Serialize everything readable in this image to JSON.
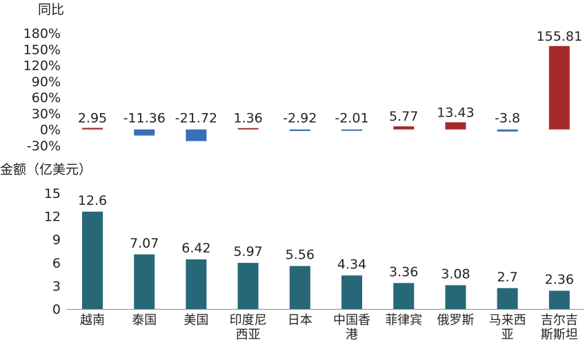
{
  "chart_data": [
    {
      "type": "bar",
      "title": "同比",
      "categories": [
        "越南",
        "泰国",
        "美国",
        "印度尼西亚",
        "日本",
        "中国香港",
        "菲律宾",
        "俄罗斯",
        "马来西亚",
        "吉尔吉斯斯坦"
      ],
      "values": [
        2.95,
        -11.36,
        -21.72,
        1.36,
        -2.92,
        -2.01,
        5.77,
        13.43,
        -3.8,
        155.81
      ],
      "value_labels": [
        "2.95",
        "-11.36",
        "-21.72",
        "1.36",
        "-2.92",
        "-2.01",
        "5.77",
        "13.43",
        "-3.8",
        "155.81"
      ],
      "y_ticks": [
        "-30%",
        "0%",
        "30%",
        "60%",
        "90%",
        "120%",
        "150%",
        "180%"
      ],
      "ylim": [
        -30,
        180
      ],
      "colors": {
        "positive": "#A52A2A",
        "negative": "#3A6EB5"
      },
      "grid": false
    },
    {
      "type": "bar",
      "title": "金额（亿美元）",
      "categories": [
        "越南",
        "泰国",
        "美国",
        "印度尼西亚",
        "日本",
        "中国香港",
        "菲律宾",
        "俄罗斯",
        "马来西亚",
        "吉尔吉斯斯坦"
      ],
      "category_lines": [
        [
          "越南"
        ],
        [
          "泰国"
        ],
        [
          "美国"
        ],
        [
          "印度尼",
          "西亚"
        ],
        [
          "日本"
        ],
        [
          "中国香",
          "港"
        ],
        [
          "菲律宾"
        ],
        [
          "俄罗斯"
        ],
        [
          "马来西",
          "亚"
        ],
        [
          "吉尔吉",
          "斯斯坦"
        ]
      ],
      "values": [
        12.6,
        7.07,
        6.42,
        5.97,
        5.56,
        4.34,
        3.36,
        3.08,
        2.7,
        2.36
      ],
      "value_labels": [
        "12.6",
        "7.07",
        "6.42",
        "5.97",
        "5.56",
        "4.34",
        "3.36",
        "3.08",
        "2.7",
        "2.36"
      ],
      "y_ticks": [
        "0",
        "3",
        "6",
        "9",
        "12",
        "15"
      ],
      "ylim": [
        0,
        15
      ],
      "colors": {
        "bar": "#276878"
      },
      "grid": false
    }
  ]
}
